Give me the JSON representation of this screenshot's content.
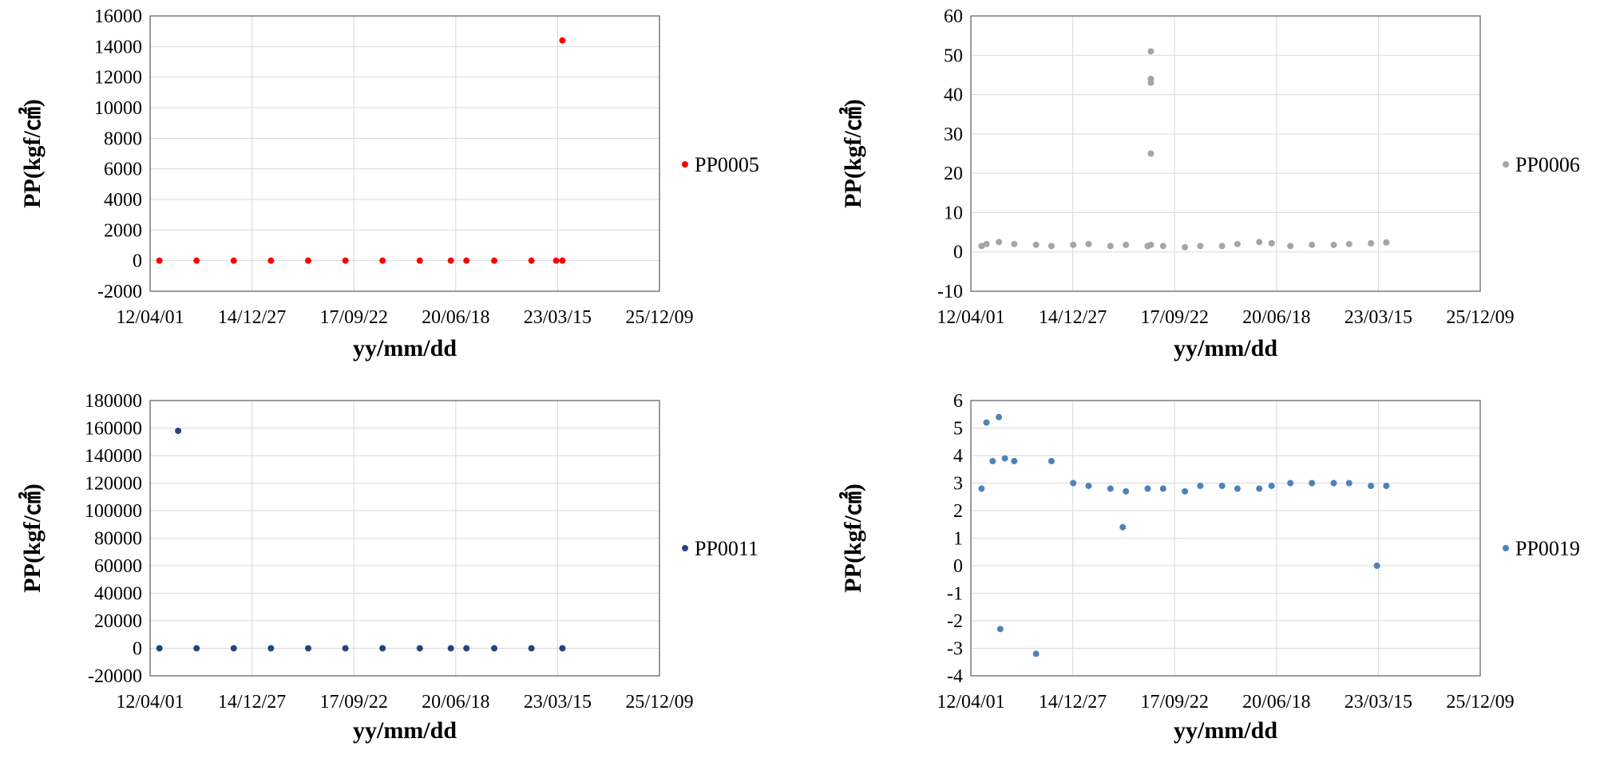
{
  "chart_data": [
    {
      "type": "scatter",
      "title": "",
      "xlabel": "yy/mm/dd",
      "ylabel": "PP(kgf/㎠)",
      "xlim": [
        "12/04/01",
        "25/12/09"
      ],
      "x_ticks": [
        "12/04/01",
        "14/12/27",
        "17/09/22",
        "20/06/18",
        "23/03/15",
        "25/12/09"
      ],
      "ylim": [
        -2000,
        16000
      ],
      "y_ticks": [
        "-2000",
        "0",
        "2000",
        "4000",
        "6000",
        "8000",
        "10000",
        "12000",
        "14000",
        "16000"
      ],
      "grid": true,
      "legend_position": "right",
      "series": [
        {
          "name": "PP0005",
          "color": "#ff0000",
          "x": [
            "12/07/01",
            "13/07/01",
            "14/07/01",
            "15/07/01",
            "16/07/01",
            "17/07/01",
            "18/07/01",
            "19/07/01",
            "20/05/01",
            "20/10/01",
            "21/07/01",
            "22/07/01",
            "23/03/01",
            "23/05/01",
            "23/05/01"
          ],
          "y": [
            0,
            0,
            0,
            0,
            0,
            0,
            0,
            0,
            0,
            0,
            0,
            0,
            0,
            0,
            14400
          ]
        }
      ]
    },
    {
      "type": "scatter",
      "title": "",
      "xlabel": "yy/mm/dd",
      "ylabel": "PP(kgf/㎠)",
      "xlim": [
        "12/04/01",
        "25/12/09"
      ],
      "x_ticks": [
        "12/04/01",
        "14/12/27",
        "17/09/22",
        "20/06/18",
        "23/03/15",
        "25/12/09"
      ],
      "ylim": [
        -10,
        60
      ],
      "y_ticks": [
        "-10",
        "0",
        "10",
        "20",
        "30",
        "40",
        "50",
        "60"
      ],
      "grid": true,
      "legend_position": "right",
      "series": [
        {
          "name": "PP0006",
          "color": "#a5a5a5",
          "x": [
            "12/07/15",
            "12/09/01",
            "13/01/01",
            "13/06/01",
            "14/01/01",
            "14/06/01",
            "15/01/01",
            "15/06/01",
            "16/01/01",
            "16/06/01",
            "17/01/01",
            "17/02/01",
            "17/02/01",
            "17/02/01",
            "17/02/01",
            "17/02/01",
            "17/06/01",
            "18/01/01",
            "18/06/01",
            "19/01/01",
            "19/06/01",
            "20/01/01",
            "20/05/01",
            "20/11/01",
            "21/06/01",
            "22/01/01",
            "22/06/01",
            "23/01/01",
            "23/06/01"
          ],
          "y": [
            1.5,
            2,
            2.5,
            2,
            1.8,
            1.5,
            1.8,
            2,
            1.5,
            1.8,
            1.5,
            25,
            43,
            44,
            51,
            1.8,
            1.5,
            1.2,
            1.5,
            1.5,
            2,
            2.5,
            2.2,
            1.5,
            1.8,
            1.8,
            2,
            2.2,
            2.4
          ]
        }
      ]
    },
    {
      "type": "scatter",
      "title": "",
      "xlabel": "yy/mm/dd",
      "ylabel": "PP(kgf/㎠)",
      "xlim": [
        "12/04/01",
        "25/12/09"
      ],
      "x_ticks": [
        "12/04/01",
        "14/12/27",
        "17/09/22",
        "20/06/18",
        "23/03/15",
        "25/12/09"
      ],
      "ylim": [
        -20000,
        180000
      ],
      "y_ticks": [
        "-20000",
        "0",
        "20000",
        "40000",
        "60000",
        "80000",
        "100000",
        "120000",
        "140000",
        "160000",
        "180000"
      ],
      "grid": true,
      "legend_position": "right",
      "series": [
        {
          "name": "PP0011",
          "color": "#264478",
          "x": [
            "12/07/01",
            "13/01/01",
            "13/07/01",
            "14/07/01",
            "15/07/01",
            "16/07/01",
            "17/07/01",
            "18/07/01",
            "19/07/01",
            "20/05/01",
            "20/10/01",
            "21/07/01",
            "22/07/01",
            "23/05/01"
          ],
          "y": [
            0,
            158000,
            0,
            0,
            0,
            0,
            0,
            0,
            0,
            0,
            0,
            0,
            0,
            0
          ]
        }
      ]
    },
    {
      "type": "scatter",
      "title": "",
      "xlabel": "yy/mm/dd",
      "ylabel": "PP(kgf/㎠)",
      "xlim": [
        "12/04/01",
        "25/12/09"
      ],
      "x_ticks": [
        "12/04/01",
        "14/12/27",
        "17/09/22",
        "20/06/18",
        "23/03/15",
        "25/12/09"
      ],
      "ylim": [
        -4,
        6
      ],
      "y_ticks": [
        "-4",
        "-3",
        "-2",
        "-1",
        "0",
        "1",
        "2",
        "3",
        "4",
        "5",
        "6"
      ],
      "grid": true,
      "legend_position": "right",
      "series": [
        {
          "name": "PP0019",
          "color": "#4e82b8",
          "x": [
            "12/07/15",
            "12/09/01",
            "12/11/01",
            "13/01/01",
            "13/01/15",
            "13/03/01",
            "13/06/01",
            "14/01/01",
            "14/06/01",
            "15/01/01",
            "15/06/01",
            "16/01/01",
            "16/05/01",
            "16/06/01",
            "17/01/01",
            "17/06/01",
            "18/01/01",
            "18/06/01",
            "19/01/01",
            "19/06/01",
            "20/01/01",
            "20/05/01",
            "20/11/01",
            "21/06/01",
            "22/01/01",
            "22/06/01",
            "23/01/01",
            "23/03/01",
            "23/06/01"
          ],
          "y": [
            2.8,
            5.2,
            3.8,
            5.4,
            -2.3,
            3.9,
            3.8,
            -3.2,
            3.8,
            3.0,
            2.9,
            2.8,
            1.4,
            2.7,
            2.8,
            2.8,
            2.7,
            2.9,
            2.9,
            2.8,
            2.8,
            2.9,
            3.0,
            3.0,
            3.0,
            3.0,
            2.9,
            0.0,
            2.9
          ]
        }
      ]
    }
  ]
}
